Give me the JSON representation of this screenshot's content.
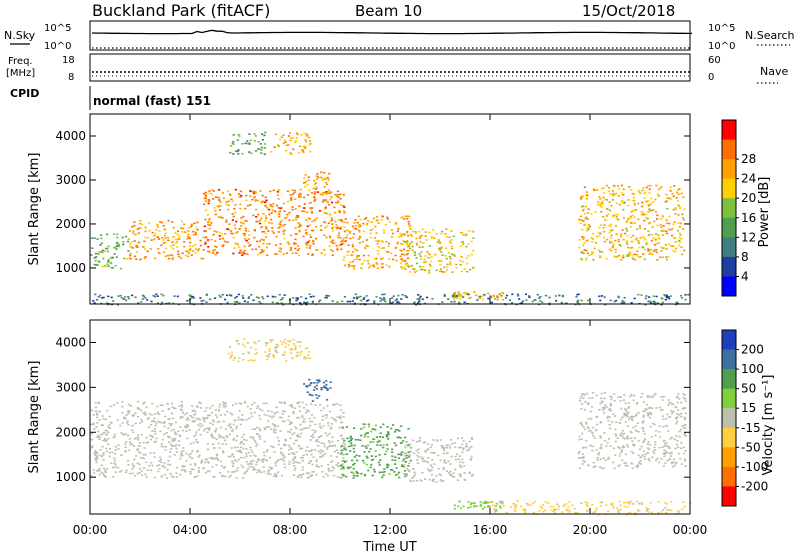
{
  "header": {
    "site": "Buckland Park (fitACF)",
    "beam": "Beam 10",
    "date": "15/Oct/2018"
  },
  "panels": {
    "nsky": {
      "label": "N.Sky",
      "tick_top": "10^5",
      "tick_bottom": "10^0"
    },
    "nsearch": {
      "label": "N.Search",
      "tick_top": "10^5",
      "tick_bottom": "10^0"
    },
    "freq": {
      "label_line1": "Freq.",
      "label_line2": "[MHz]",
      "tick_top": "18",
      "tick_bottom": "8"
    },
    "nave": {
      "label": "Nave",
      "tick_top": "60",
      "tick_bottom": "0"
    },
    "cpid": {
      "label": "CPID",
      "text": "normal (fast) 151"
    }
  },
  "chart_data": [
    {
      "type": "heatmap",
      "title": "",
      "xlabel": "",
      "ylabel": "Slant Range [km]",
      "xlim": [
        "00:00",
        "24:00"
      ],
      "ylim": [
        180,
        4500
      ],
      "x_ticks": [
        "00:00",
        "04:00",
        "08:00",
        "12:00",
        "16:00",
        "20:00",
        "00:00"
      ],
      "y_ticks": [
        1000,
        2000,
        3000,
        4000
      ],
      "colorbar": {
        "label": "Power [dB]",
        "ticks": [
          4,
          8,
          12,
          16,
          20,
          24,
          28
        ],
        "colors": [
          "#0000ff",
          "#1f3fa0",
          "#3f7f7f",
          "#4f9f4f",
          "#7fbf3f",
          "#ffcf00",
          "#ff9f00",
          "#ff6f00",
          "#ff0000"
        ]
      },
      "regions": [
        {
          "t0": 0.0,
          "t1": 1.5,
          "r0": 1000,
          "r1": 1800,
          "level": 16
        },
        {
          "t0": 1.5,
          "t1": 4.5,
          "r0": 1200,
          "r1": 2100,
          "level": 26
        },
        {
          "t0": 4.5,
          "t1": 10.2,
          "r0": 1300,
          "r1": 2800,
          "level": 28
        },
        {
          "t0": 5.5,
          "t1": 7.0,
          "r0": 3600,
          "r1": 4100,
          "level": 14
        },
        {
          "t0": 7.2,
          "t1": 8.8,
          "r0": 3600,
          "r1": 4100,
          "level": 24
        },
        {
          "t0": 8.5,
          "t1": 9.6,
          "r0": 2700,
          "r1": 3200,
          "level": 26
        },
        {
          "t0": 10.0,
          "t1": 12.8,
          "r0": 1000,
          "r1": 2200,
          "level": 26
        },
        {
          "t0": 12.5,
          "t1": 15.3,
          "r0": 900,
          "r1": 1900,
          "level": 22
        },
        {
          "t0": 14.5,
          "t1": 16.5,
          "r0": 280,
          "r1": 480,
          "level": 24
        },
        {
          "t0": 19.5,
          "t1": 23.8,
          "r0": 1200,
          "r1": 2900,
          "level": 24
        },
        {
          "t0": 0.0,
          "t1": 24.0,
          "r0": 180,
          "r1": 420,
          "level": 10
        }
      ]
    },
    {
      "type": "heatmap",
      "title": "",
      "xlabel": "Time UT",
      "ylabel": "Slant Range [km]",
      "xlim": [
        "00:00",
        "24:00"
      ],
      "ylim": [
        180,
        4500
      ],
      "x_ticks": [
        "00:00",
        "04:00",
        "08:00",
        "12:00",
        "16:00",
        "20:00",
        "00:00"
      ],
      "y_ticks": [
        1000,
        2000,
        3000,
        4000
      ],
      "colorbar": {
        "label": "Velocity [m s⁻¹]",
        "ticks": [
          200,
          100,
          50,
          15,
          -15,
          -50,
          -100,
          -200
        ],
        "colors": [
          "#1f3fbf",
          "#3f6f9f",
          "#4f9f4f",
          "#7fcf3f",
          "#bfbfb0",
          "#ffcf3f",
          "#ffa000",
          "#ff6f00",
          "#ff0000"
        ]
      },
      "regions": [
        {
          "t0": 0.0,
          "t1": 10.2,
          "r0": 1000,
          "r1": 2700,
          "level": 0
        },
        {
          "t0": 5.5,
          "t1": 8.8,
          "r0": 3600,
          "r1": 4100,
          "level": -20
        },
        {
          "t0": 8.5,
          "t1": 9.6,
          "r0": 2700,
          "r1": 3200,
          "level": 150
        },
        {
          "t0": 10.0,
          "t1": 12.8,
          "r0": 1000,
          "r1": 2200,
          "level": 60
        },
        {
          "t0": 12.5,
          "t1": 15.3,
          "r0": 900,
          "r1": 1900,
          "level": 0
        },
        {
          "t0": 14.5,
          "t1": 16.5,
          "r0": 280,
          "r1": 480,
          "level": 30
        },
        {
          "t0": 16.0,
          "t1": 24.0,
          "r0": 180,
          "r1": 480,
          "level": -25
        },
        {
          "t0": 19.5,
          "t1": 23.8,
          "r0": 1200,
          "r1": 2900,
          "level": 0
        }
      ]
    }
  ]
}
